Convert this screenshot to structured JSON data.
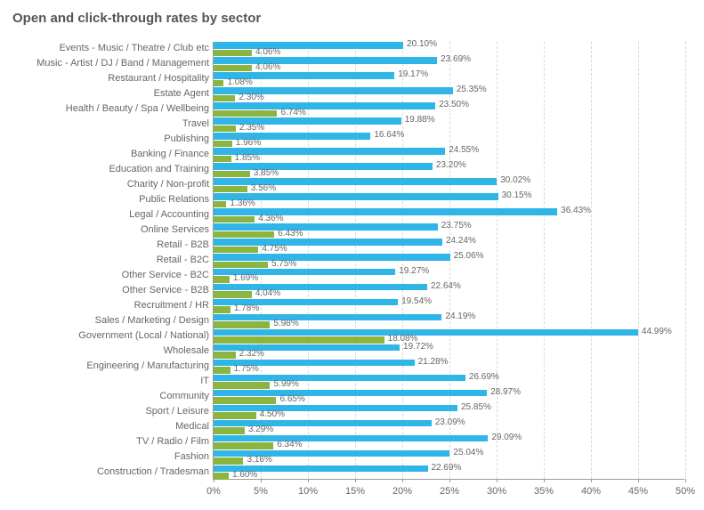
{
  "chart": {
    "type": "bar",
    "title": "Open and click-through rates by sector",
    "title_color": "#555555",
    "title_fontsize": 15,
    "label_fontsize": 11,
    "value_fontsize": 10,
    "background_color": "#ffffff",
    "grid_color": "#d9d9d9",
    "axis_color": "#999999",
    "text_color": "#666666",
    "xlim": [
      0,
      50
    ],
    "xtick_step": 5,
    "xtick_suffix": "%",
    "bar_colors": {
      "open": "#2fb5e8",
      "click": "#8cb53f"
    },
    "categories": [
      {
        "label": "Events - Music / Theatre / Club etc",
        "open": 20.1,
        "click": 4.06
      },
      {
        "label": "Music - Artist / DJ / Band / Management",
        "open": 23.69,
        "click": 4.06
      },
      {
        "label": "Restaurant / Hospitality",
        "open": 19.17,
        "click": 1.08
      },
      {
        "label": "Estate Agent",
        "open": 25.35,
        "click": 2.3
      },
      {
        "label": "Health / Beauty / Spa / Wellbeing",
        "open": 23.5,
        "click": 6.74
      },
      {
        "label": "Travel",
        "open": 19.88,
        "click": 2.35
      },
      {
        "label": "Publishing",
        "open": 16.64,
        "click": 1.96
      },
      {
        "label": "Banking / Finance",
        "open": 24.55,
        "click": 1.85
      },
      {
        "label": "Education and Training",
        "open": 23.2,
        "click": 3.85
      },
      {
        "label": "Charity / Non-profit",
        "open": 30.02,
        "click": 3.56
      },
      {
        "label": "Public Relations",
        "open": 30.15,
        "click": 1.36
      },
      {
        "label": "Legal / Accounting",
        "open": 36.43,
        "click": 4.36
      },
      {
        "label": "Online Services",
        "open": 23.75,
        "click": 6.43
      },
      {
        "label": "Retail - B2B",
        "open": 24.24,
        "click": 4.75
      },
      {
        "label": "Retail - B2C",
        "open": 25.06,
        "click": 5.75
      },
      {
        "label": "Other Service - B2C",
        "open": 19.27,
        "click": 1.69
      },
      {
        "label": "Other Service - B2B",
        "open": 22.64,
        "click": 4.04
      },
      {
        "label": "Recruitment / HR",
        "open": 19.54,
        "click": 1.78
      },
      {
        "label": "Sales / Marketing / Design",
        "open": 24.19,
        "click": 5.98
      },
      {
        "label": "Government (Local / National)",
        "open": 44.99,
        "click": 18.08
      },
      {
        "label": "Wholesale",
        "open": 19.72,
        "click": 2.32
      },
      {
        "label": "Engineering / Manufacturing",
        "open": 21.28,
        "click": 1.75
      },
      {
        "label": "IT",
        "open": 26.69,
        "click": 5.99
      },
      {
        "label": "Community",
        "open": 28.97,
        "click": 6.65
      },
      {
        "label": "Sport / Leisure",
        "open": 25.85,
        "click": 4.5
      },
      {
        "label": "Medical",
        "open": 23.09,
        "click": 3.29
      },
      {
        "label": "TV / Radio / Film",
        "open": 29.09,
        "click": 6.34
      },
      {
        "label": "Fashion",
        "open": 25.04,
        "click": 3.16
      },
      {
        "label": "Construction / Tradesman",
        "open": 22.69,
        "click": 1.6
      }
    ]
  }
}
